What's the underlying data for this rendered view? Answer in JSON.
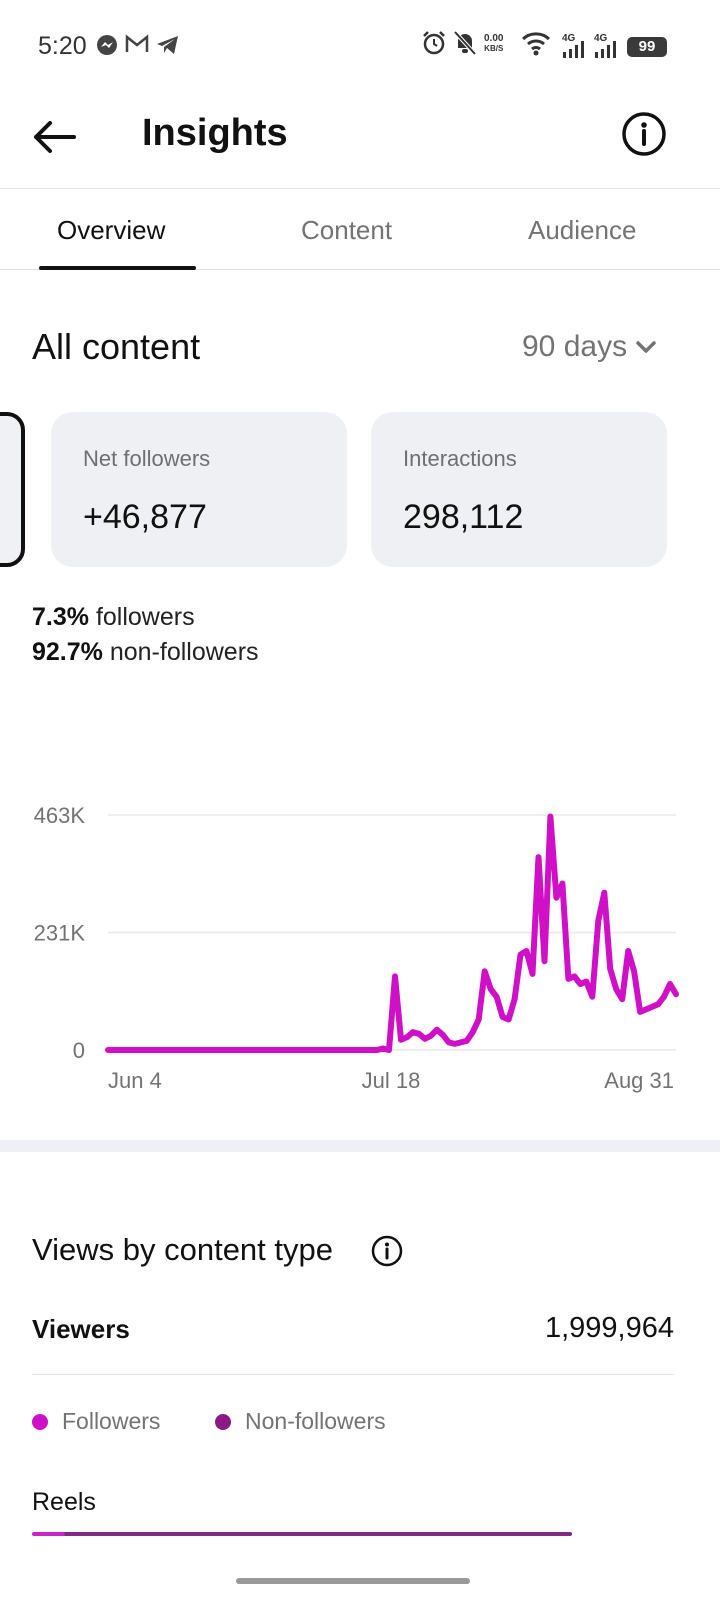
{
  "status_bar": {
    "time": "5:20",
    "net_speed_value": "0.00",
    "net_speed_unit": "KB/S",
    "sig1": "4G",
    "sig2": "4G",
    "battery": "99"
  },
  "header": {
    "title": "Insights"
  },
  "tabs": [
    {
      "label": "Overview",
      "active": true
    },
    {
      "label": "Content",
      "active": false
    },
    {
      "label": "Audience",
      "active": false
    }
  ],
  "all_content": {
    "title": "All content",
    "range": "90 days"
  },
  "cards": [
    {
      "label": "Net followers",
      "value": "+46,877"
    },
    {
      "label": "Interactions",
      "value": "298,112"
    }
  ],
  "ratio": {
    "followers_pct": "7.3%",
    "followers_label": "followers",
    "non_followers_pct": "92.7%",
    "non_followers_label": "non-followers"
  },
  "chart_data": {
    "type": "line",
    "ytick_labels": [
      "0",
      "231K",
      "463K"
    ],
    "ylim": [
      0,
      463000
    ],
    "xtick_labels": [
      "Jun 4",
      "Jul 18",
      "Aug 31"
    ],
    "color": "#d010c6",
    "series": [
      {
        "values": [
          0,
          0,
          0,
          0,
          0,
          0,
          0,
          0,
          0,
          0,
          0,
          0,
          0,
          0,
          0,
          0,
          0,
          0,
          0,
          0,
          0,
          0,
          0,
          0,
          0,
          0,
          0,
          0,
          0,
          0,
          0,
          0,
          0,
          0,
          0,
          0,
          0,
          0,
          0,
          0,
          0,
          0,
          0,
          0,
          0,
          0,
          3000,
          0,
          145000,
          20000,
          25000,
          35000,
          32000,
          22000,
          28000,
          40000,
          30000,
          15000,
          12000,
          15000,
          18000,
          35000,
          60000,
          155000,
          120000,
          105000,
          65000,
          60000,
          100000,
          188000,
          195000,
          150000,
          380000,
          175000,
          460000,
          300000,
          328000,
          140000,
          145000,
          130000,
          135000,
          105000,
          255000,
          310000,
          160000,
          120000,
          100000,
          195000,
          155000,
          75000,
          80000,
          85000,
          90000,
          105000,
          130000,
          110000
        ]
      }
    ]
  },
  "views_section": {
    "title": "Views by content type",
    "viewers_label": "Viewers",
    "viewers_value": "1,999,964",
    "legend": [
      {
        "label": "Followers",
        "color": "#d010c6"
      },
      {
        "label": "Non-followers",
        "color": "#8a1a86"
      }
    ],
    "reels_label": "Reels",
    "reels_followers_fraction": 0.06
  }
}
